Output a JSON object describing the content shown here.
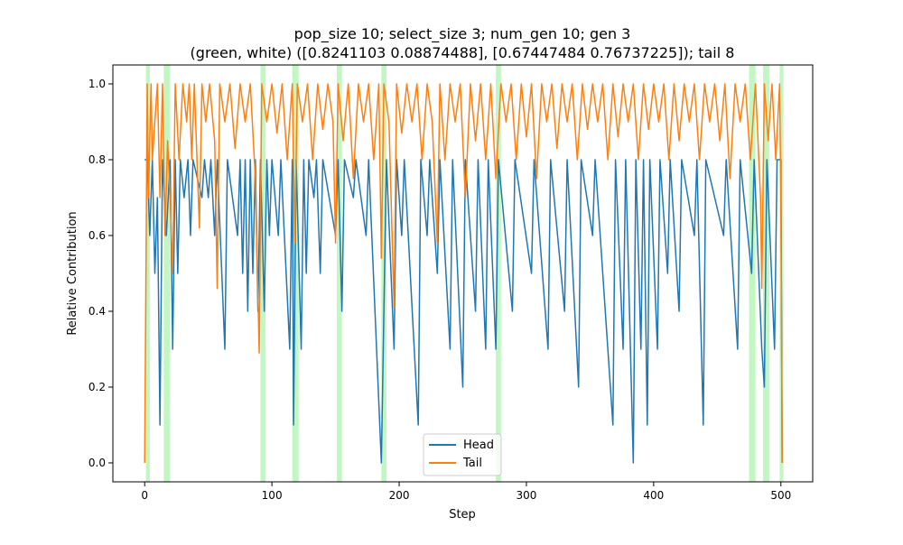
{
  "chart_data": {
    "type": "line",
    "title_line1": "pop_size 10; select_size 3; num_gen 10; gen 3",
    "title_line2": "(green, white) ([0.8241103  0.08874488], [0.67447484 0.76737225]); tail 8",
    "xlabel": "Step",
    "ylabel": "Relative Contribution",
    "xlim": [
      -25,
      525
    ],
    "ylim": [
      -0.05,
      1.05
    ],
    "x_ticks": [
      0,
      100,
      200,
      300,
      400,
      500
    ],
    "y_ticks": [
      0.0,
      0.2,
      0.4,
      0.6,
      0.8,
      1.0
    ],
    "y_tick_labels": [
      "0.0",
      "0.2",
      "0.4",
      "0.6",
      "0.8",
      "1.0"
    ],
    "grid": false,
    "legend_position": "lower-center",
    "num_steps": 501,
    "highlight_color": "#90ee90",
    "highlight_regions": [
      [
        1,
        4
      ],
      [
        15,
        20
      ],
      [
        91,
        95
      ],
      [
        116,
        121
      ],
      [
        151,
        155
      ],
      [
        186,
        190
      ],
      [
        276,
        280
      ],
      [
        475,
        480
      ],
      [
        486,
        491
      ],
      [
        499,
        502
      ]
    ],
    "series": [
      {
        "name": "Head",
        "color": "#1f77b4",
        "baseline": 0.8,
        "points": [
          [
            0,
            0.8
          ],
          [
            2,
            0.8
          ],
          [
            4,
            0.6
          ],
          [
            6,
            0.8
          ],
          [
            8,
            0.5
          ],
          [
            10,
            0.7
          ],
          [
            12,
            0.1
          ],
          [
            14,
            0.8
          ],
          [
            17,
            0.6
          ],
          [
            20,
            0.8
          ],
          [
            22,
            0.3
          ],
          [
            24,
            0.8
          ],
          [
            26,
            0.5
          ],
          [
            28,
            0.8
          ],
          [
            31,
            0.7
          ],
          [
            34,
            0.8
          ],
          [
            36,
            0.6
          ],
          [
            38,
            0.8
          ],
          [
            45,
            0.7
          ],
          [
            47,
            0.8
          ],
          [
            50,
            0.7
          ],
          [
            52,
            0.8
          ],
          [
            55,
            0.6
          ],
          [
            57,
            0.8
          ],
          [
            63,
            0.3
          ],
          [
            65,
            0.8
          ],
          [
            73,
            0.6
          ],
          [
            75,
            0.8
          ],
          [
            77,
            0.5
          ],
          [
            79,
            0.8
          ],
          [
            81,
            0.4
          ],
          [
            83,
            0.8
          ],
          [
            85,
            0.5
          ],
          [
            87,
            0.8
          ],
          [
            89,
            0.4
          ],
          [
            91,
            0.8
          ],
          [
            94,
            0.4
          ],
          [
            96,
            0.8
          ],
          [
            98,
            0.6
          ],
          [
            100,
            0.8
          ],
          [
            105,
            0.6
          ],
          [
            107,
            0.8
          ],
          [
            114,
            0.3
          ],
          [
            116,
            0.8
          ],
          [
            117,
            0.1
          ],
          [
            119,
            0.8
          ],
          [
            123,
            0.3
          ],
          [
            125,
            0.8
          ],
          [
            127,
            0.5
          ],
          [
            129,
            0.8
          ],
          [
            133,
            0.7
          ],
          [
            135,
            0.8
          ],
          [
            138,
            0.5
          ],
          [
            140,
            0.8
          ],
          [
            150,
            0.6
          ],
          [
            152,
            0.8
          ],
          [
            155,
            0.4
          ],
          [
            157,
            0.8
          ],
          [
            164,
            0.7
          ],
          [
            166,
            0.8
          ],
          [
            174,
            0.6
          ],
          [
            176,
            0.8
          ],
          [
            186,
            0.0
          ],
          [
            188,
            0.4
          ],
          [
            190,
            0.8
          ],
          [
            196,
            0.3
          ],
          [
            198,
            0.8
          ],
          [
            202,
            0.6
          ],
          [
            204,
            0.8
          ],
          [
            215,
            0.1
          ],
          [
            217,
            0.8
          ],
          [
            222,
            0.6
          ],
          [
            224,
            0.8
          ],
          [
            230,
            0.5
          ],
          [
            232,
            0.8
          ],
          [
            240,
            0.3
          ],
          [
            242,
            0.8
          ],
          [
            250,
            0.2
          ],
          [
            252,
            0.8
          ],
          [
            260,
            0.4
          ],
          [
            262,
            0.8
          ],
          [
            268,
            0.3
          ],
          [
            270,
            0.8
          ],
          [
            276,
            0.3
          ],
          [
            278,
            0.8
          ],
          [
            289,
            0.4
          ],
          [
            291,
            0.8
          ],
          [
            304,
            0.5
          ],
          [
            306,
            0.8
          ],
          [
            317,
            0.3
          ],
          [
            319,
            0.8
          ],
          [
            330,
            0.4
          ],
          [
            332,
            0.8
          ],
          [
            341,
            0.2
          ],
          [
            343,
            0.8
          ],
          [
            352,
            0.6
          ],
          [
            354,
            0.8
          ],
          [
            368,
            0.1
          ],
          [
            370,
            0.8
          ],
          [
            376,
            0.3
          ],
          [
            378,
            0.8
          ],
          [
            384,
            0.0
          ],
          [
            386,
            0.8
          ],
          [
            390,
            0.3
          ],
          [
            392,
            0.8
          ],
          [
            395,
            0.1
          ],
          [
            397,
            0.8
          ],
          [
            403,
            0.3
          ],
          [
            405,
            0.8
          ],
          [
            411,
            0.5
          ],
          [
            413,
            0.8
          ],
          [
            420,
            0.4
          ],
          [
            422,
            0.8
          ],
          [
            432,
            0.6
          ],
          [
            434,
            0.8
          ],
          [
            439,
            0.1
          ],
          [
            441,
            0.8
          ],
          [
            455,
            0.6
          ],
          [
            457,
            0.8
          ],
          [
            466,
            0.3
          ],
          [
            468,
            0.8
          ],
          [
            477,
            0.5
          ],
          [
            479,
            0.8
          ],
          [
            485,
            0.3
          ],
          [
            487,
            0.2
          ],
          [
            489,
            0.8
          ],
          [
            495,
            0.3
          ],
          [
            497,
            0.8
          ],
          [
            500,
            0.8
          ],
          [
            501,
            0.0
          ]
        ]
      },
      {
        "name": "Tail",
        "color": "#ff7f0e",
        "points": [
          [
            0,
            0.0
          ],
          [
            2,
            1.0
          ],
          [
            3,
            0.7
          ],
          [
            5,
            1.0
          ],
          [
            6,
            0.8
          ],
          [
            8,
            0.9
          ],
          [
            10,
            1.0
          ],
          [
            12,
            0.7
          ],
          [
            14,
            1.0
          ],
          [
            16,
            0.6
          ],
          [
            18,
            0.85
          ],
          [
            20,
            0.7
          ],
          [
            22,
            0.5
          ],
          [
            24,
            1.0
          ],
          [
            27,
            0.8
          ],
          [
            30,
            1.0
          ],
          [
            33,
            0.9
          ],
          [
            35,
            1.0
          ],
          [
            37,
            0.8
          ],
          [
            39,
            1.0
          ],
          [
            43,
            0.62
          ],
          [
            45,
            1.0
          ],
          [
            48,
            0.9
          ],
          [
            51,
            1.0
          ],
          [
            55,
            0.85
          ],
          [
            57,
            0.46
          ],
          [
            59,
            1.0
          ],
          [
            63,
            0.9
          ],
          [
            67,
            1.0
          ],
          [
            71,
            0.83
          ],
          [
            75,
            1.0
          ],
          [
            79,
            0.9
          ],
          [
            83,
            1.0
          ],
          [
            87,
            0.75
          ],
          [
            90,
            0.29
          ],
          [
            92,
            1.0
          ],
          [
            96,
            0.9
          ],
          [
            100,
            1.0
          ],
          [
            104,
            0.87
          ],
          [
            108,
            1.0
          ],
          [
            112,
            0.8
          ],
          [
            116,
            1.0
          ],
          [
            118,
            0.58
          ],
          [
            120,
            1.0
          ],
          [
            124,
            0.9
          ],
          [
            128,
            1.0
          ],
          [
            132,
            0.8
          ],
          [
            136,
            1.0
          ],
          [
            140,
            0.88
          ],
          [
            144,
            1.0
          ],
          [
            148,
            0.9
          ],
          [
            150,
            0.58
          ],
          [
            152,
            1.0
          ],
          [
            156,
            0.85
          ],
          [
            160,
            1.0
          ],
          [
            164,
            0.75
          ],
          [
            168,
            1.0
          ],
          [
            172,
            0.9
          ],
          [
            176,
            1.0
          ],
          [
            180,
            0.8
          ],
          [
            184,
            1.0
          ],
          [
            186,
            0.54
          ],
          [
            188,
            1.0
          ],
          [
            192,
            0.9
          ],
          [
            196,
            0.41
          ],
          [
            198,
            1.0
          ],
          [
            202,
            0.87
          ],
          [
            206,
            1.0
          ],
          [
            210,
            0.9
          ],
          [
            214,
            1.0
          ],
          [
            218,
            0.8
          ],
          [
            222,
            1.0
          ],
          [
            226,
            0.9
          ],
          [
            230,
            0.58
          ],
          [
            232,
            1.0
          ],
          [
            236,
            0.8
          ],
          [
            240,
            1.0
          ],
          [
            244,
            0.9
          ],
          [
            248,
            1.0
          ],
          [
            252,
            0.7
          ],
          [
            256,
            1.0
          ],
          [
            260,
            0.85
          ],
          [
            264,
            1.0
          ],
          [
            268,
            0.8
          ],
          [
            272,
            1.0
          ],
          [
            276,
            0.75
          ],
          [
            280,
            1.0
          ],
          [
            284,
            0.9
          ],
          [
            288,
            1.0
          ],
          [
            292,
            0.8
          ],
          [
            296,
            1.0
          ],
          [
            300,
            0.86
          ],
          [
            304,
            1.0
          ],
          [
            308,
            0.75
          ],
          [
            312,
            1.0
          ],
          [
            316,
            0.9
          ],
          [
            320,
            1.0
          ],
          [
            324,
            0.83
          ],
          [
            328,
            1.0
          ],
          [
            332,
            0.9
          ],
          [
            336,
            1.0
          ],
          [
            340,
            0.8
          ],
          [
            344,
            1.0
          ],
          [
            348,
            0.88
          ],
          [
            352,
            1.0
          ],
          [
            356,
            0.9
          ],
          [
            360,
            1.0
          ],
          [
            364,
            0.8
          ],
          [
            368,
            1.0
          ],
          [
            372,
            0.86
          ],
          [
            376,
            1.0
          ],
          [
            380,
            0.9
          ],
          [
            384,
            1.0
          ],
          [
            388,
            0.8
          ],
          [
            392,
            1.0
          ],
          [
            396,
            0.88
          ],
          [
            400,
            1.0
          ],
          [
            404,
            0.9
          ],
          [
            408,
            1.0
          ],
          [
            412,
            0.8
          ],
          [
            416,
            1.0
          ],
          [
            420,
            0.85
          ],
          [
            424,
            1.0
          ],
          [
            428,
            0.9
          ],
          [
            432,
            1.0
          ],
          [
            436,
            0.8
          ],
          [
            440,
            1.0
          ],
          [
            444,
            0.9
          ],
          [
            448,
            1.0
          ],
          [
            452,
            0.85
          ],
          [
            456,
            1.0
          ],
          [
            460,
            0.75
          ],
          [
            464,
            1.0
          ],
          [
            468,
            0.9
          ],
          [
            472,
            1.0
          ],
          [
            476,
            0.8
          ],
          [
            480,
            1.0
          ],
          [
            484,
            0.7
          ],
          [
            485,
            0.46
          ],
          [
            487,
            1.0
          ],
          [
            490,
            0.85
          ],
          [
            493,
            1.0
          ],
          [
            496,
            0.8
          ],
          [
            499,
            1.0
          ],
          [
            500,
            0.7
          ],
          [
            501,
            0.0
          ]
        ]
      }
    ]
  }
}
